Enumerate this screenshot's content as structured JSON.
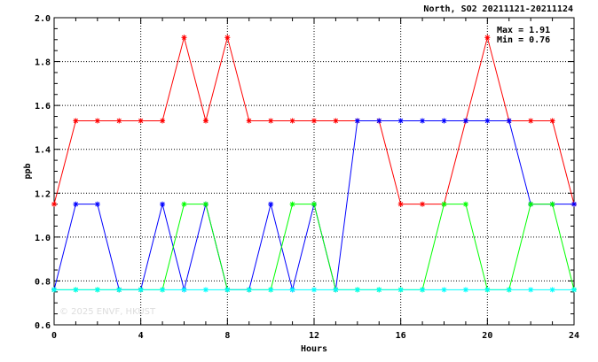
{
  "chart_data": {
    "type": "line",
    "title": "North, SO2 20211121-20211124",
    "xlabel": "Hours",
    "ylabel": "ppb",
    "xlim": [
      0,
      24
    ],
    "ylim": [
      0.6,
      2.0
    ],
    "x_ticks": [
      0,
      4,
      8,
      12,
      16,
      20,
      24
    ],
    "y_ticks": [
      0.6,
      0.8,
      1.0,
      1.2,
      1.4,
      1.6,
      1.8,
      2.0
    ],
    "grid": true,
    "annotations": [
      "Max = 1.91",
      "Min = 0.76"
    ],
    "watermark": "© 2025  ENVF, HKUST",
    "x": [
      0,
      1,
      2,
      3,
      4,
      5,
      6,
      7,
      8,
      9,
      10,
      11,
      12,
      13,
      14,
      15,
      16,
      17,
      18,
      19,
      20,
      21,
      22,
      23,
      24
    ],
    "series": [
      {
        "color": "#ff0000",
        "values": [
          1.15,
          1.53,
          1.53,
          1.53,
          1.53,
          1.53,
          1.91,
          1.53,
          1.91,
          1.53,
          1.53,
          1.53,
          1.53,
          1.53,
          1.53,
          1.53,
          1.15,
          1.15,
          1.15,
          1.53,
          1.91,
          1.53,
          1.53,
          1.53,
          1.15
        ]
      },
      {
        "color": "#0000ff",
        "values": [
          0.76,
          1.15,
          1.15,
          0.76,
          0.76,
          1.15,
          0.76,
          1.15,
          0.76,
          0.76,
          1.15,
          0.76,
          1.15,
          0.76,
          1.53,
          1.53,
          1.53,
          1.53,
          1.53,
          1.53,
          1.53,
          1.53,
          1.15,
          1.15,
          1.15
        ]
      },
      {
        "color": "#00ff00",
        "values": [
          0.76,
          0.76,
          0.76,
          0.76,
          0.76,
          0.76,
          1.15,
          1.15,
          0.76,
          0.76,
          0.76,
          1.15,
          1.15,
          0.76,
          0.76,
          0.76,
          0.76,
          0.76,
          1.15,
          1.15,
          0.76,
          0.76,
          1.15,
          1.15,
          0.76
        ]
      },
      {
        "color": "#00ffff",
        "values": [
          0.76,
          0.76,
          0.76,
          0.76,
          0.76,
          0.76,
          0.76,
          0.76,
          0.76,
          0.76,
          0.76,
          0.76,
          0.76,
          0.76,
          0.76,
          0.76,
          0.76,
          0.76,
          0.76,
          0.76,
          0.76,
          0.76,
          0.76,
          0.76,
          0.76
        ]
      }
    ]
  }
}
